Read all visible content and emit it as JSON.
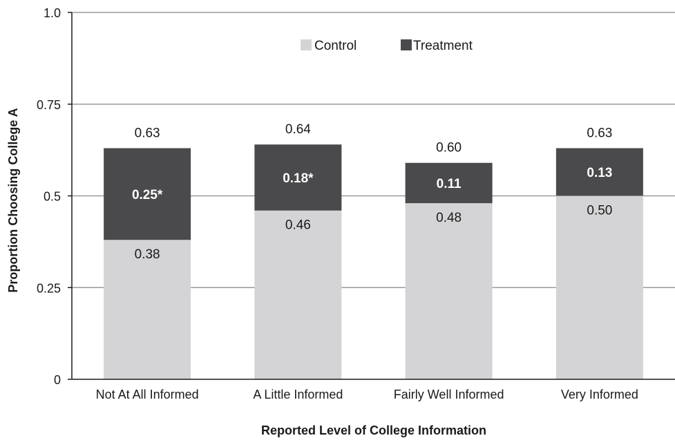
{
  "chart_data": {
    "type": "bar",
    "stacked": true,
    "categories": [
      "Not At All Informed",
      "A Little Informed",
      "Fairly Well Informed",
      "Very Informed"
    ],
    "series": [
      {
        "name": "Control",
        "values": [
          0.38,
          0.46,
          0.48,
          0.5
        ],
        "labels": [
          "0.38",
          "0.46",
          "0.48",
          "0.50"
        ],
        "color": "#d4d4d6"
      },
      {
        "name": "Treatment",
        "values": [
          0.25,
          0.18,
          0.11,
          0.13
        ],
        "labels": [
          "0.25*",
          "0.18*",
          "0.11",
          "0.13"
        ],
        "color": "#4a4a4c"
      }
    ],
    "totals": [
      "0.63",
      "0.64",
      "0.60",
      "0.63"
    ],
    "xlabel": "Reported Level of College Information",
    "ylabel": "Proportion Choosing College A",
    "ylim": [
      0,
      1.0
    ],
    "yticks": [
      0,
      0.25,
      0.5,
      0.75,
      1.0
    ],
    "ytick_labels": [
      "0",
      "0.25",
      "0.5",
      "0.75",
      "1.0"
    ],
    "grid": true,
    "legend_position": "top-center",
    "gridline_color": "#9a9a9a"
  }
}
